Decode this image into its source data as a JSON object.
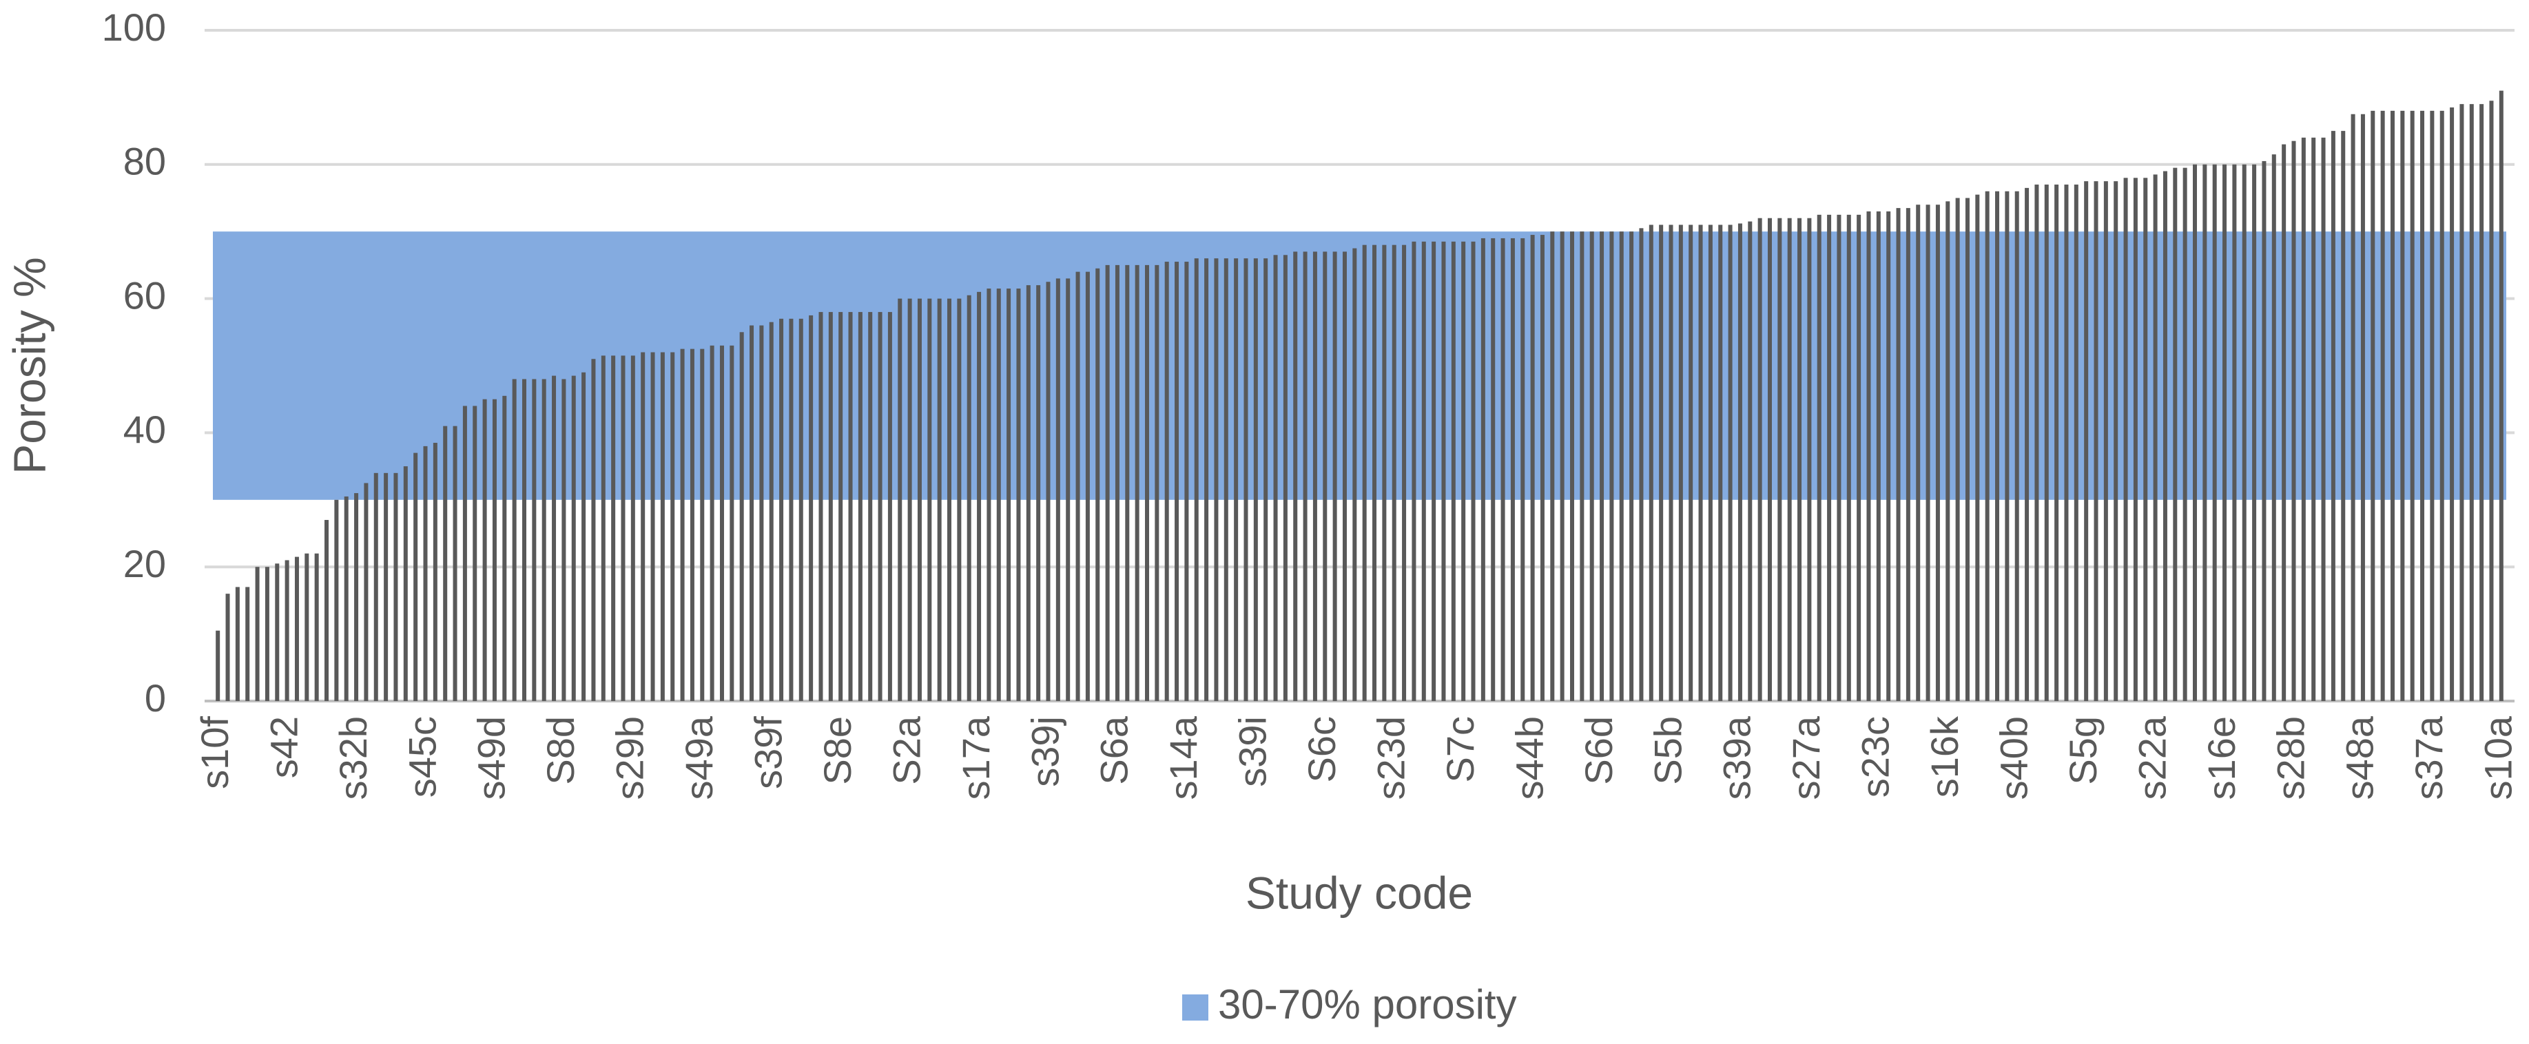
{
  "chart_data": {
    "type": "bar",
    "x_label": "Study code",
    "y_label": "Porosity %",
    "categories": [
      "s10f",
      null,
      null,
      null,
      null,
      null,
      null,
      "s42",
      null,
      null,
      null,
      null,
      null,
      null,
      "s32b",
      null,
      null,
      null,
      null,
      null,
      null,
      "s45c",
      null,
      null,
      null,
      null,
      null,
      null,
      "s49d",
      null,
      null,
      null,
      null,
      null,
      null,
      "S8d",
      null,
      null,
      null,
      null,
      null,
      null,
      "s29b",
      null,
      null,
      null,
      null,
      null,
      null,
      "s49a",
      null,
      null,
      null,
      null,
      null,
      null,
      "s39f",
      null,
      null,
      null,
      null,
      null,
      null,
      "S8e",
      null,
      null,
      null,
      null,
      null,
      null,
      "S2a",
      null,
      null,
      null,
      null,
      null,
      null,
      "s17a",
      null,
      null,
      null,
      null,
      null,
      null,
      "s39j",
      null,
      null,
      null,
      null,
      null,
      null,
      "S6a",
      null,
      null,
      null,
      null,
      null,
      null,
      "s14a",
      null,
      null,
      null,
      null,
      null,
      null,
      "s39i",
      null,
      null,
      null,
      null,
      null,
      null,
      "S6c",
      null,
      null,
      null,
      null,
      null,
      null,
      "s23d",
      null,
      null,
      null,
      null,
      null,
      null,
      "S7c",
      null,
      null,
      null,
      null,
      null,
      null,
      "s44b",
      null,
      null,
      null,
      null,
      null,
      null,
      "S6d",
      null,
      null,
      null,
      null,
      null,
      null,
      "S5b",
      null,
      null,
      null,
      null,
      null,
      null,
      "s39a",
      null,
      null,
      null,
      null,
      null,
      null,
      "s27a",
      null,
      null,
      null,
      null,
      null,
      null,
      "s23c",
      null,
      null,
      null,
      null,
      null,
      null,
      "s16k",
      null,
      null,
      null,
      null,
      null,
      null,
      "s40b",
      null,
      null,
      null,
      null,
      null,
      null,
      "S5g",
      null,
      null,
      null,
      null,
      null,
      null,
      "s22a",
      null,
      null,
      null,
      null,
      null,
      null,
      "s16e",
      null,
      null,
      null,
      null,
      null,
      null,
      "s28b",
      null,
      null,
      null,
      null,
      null,
      null,
      "s48a",
      null,
      null,
      null,
      null,
      null,
      null,
      "s37a",
      null,
      null,
      null,
      null,
      null,
      null,
      "s10a"
    ],
    "values": [
      10.5,
      16,
      17,
      17,
      20,
      20,
      20.5,
      21,
      21.5,
      22,
      22,
      27,
      30,
      30.5,
      31,
      32.5,
      34,
      34,
      34,
      35,
      37,
      38,
      38.5,
      41,
      41,
      44,
      44,
      45,
      45,
      45.5,
      48,
      48,
      48,
      48,
      48.5,
      48,
      48.5,
      49,
      51,
      51.5,
      51.5,
      51.5,
      51.5,
      52,
      52,
      52,
      52,
      52.5,
      52.5,
      52.5,
      53,
      53,
      53,
      55,
      56,
      56,
      56.5,
      57,
      57,
      57,
      57.5,
      58,
      58,
      58,
      58,
      58,
      58,
      58,
      58,
      60,
      60,
      60,
      60,
      60,
      60,
      60,
      60.5,
      61,
      61.5,
      61.5,
      61.5,
      61.5,
      62,
      62,
      62.5,
      63,
      63,
      64,
      64,
      64.5,
      65,
      65,
      65,
      65,
      65,
      65,
      65.5,
      65.5,
      65.5,
      66,
      66,
      66,
      66,
      66,
      66,
      66,
      66,
      66.5,
      66.5,
      67,
      67,
      67,
      67,
      67,
      67,
      67.5,
      68,
      68,
      68,
      68,
      68,
      68.5,
      68.5,
      68.5,
      68.5,
      68.5,
      68.5,
      68.5,
      69,
      69,
      69,
      69,
      69,
      69.5,
      69.5,
      70,
      70,
      70,
      70,
      70,
      70,
      70,
      70,
      70,
      70.5,
      71,
      71,
      71,
      71,
      71,
      71,
      71,
      71,
      71,
      71.2,
      71.5,
      72,
      72,
      72,
      72,
      72,
      72,
      72.5,
      72.5,
      72.5,
      72.5,
      72.5,
      73,
      73,
      73,
      73.5,
      73.5,
      74,
      74,
      74,
      74.5,
      75,
      75,
      75.5,
      76,
      76,
      76,
      76,
      76.5,
      77,
      77,
      77,
      77,
      77,
      77.5,
      77.5,
      77.5,
      77.5,
      78,
      78,
      78,
      78.5,
      79,
      79.5,
      79.5,
      80,
      80,
      80,
      80,
      80,
      80,
      80,
      80.5,
      81.5,
      83,
      83.5,
      84,
      84,
      84,
      85,
      85,
      87.5,
      87.5,
      88,
      88,
      88,
      88,
      88,
      88,
      88,
      88,
      88.5,
      89,
      89,
      89,
      89.5,
      91
    ],
    "color": "#595959",
    "band": {
      "name": "30-70% porosity",
      "color": "#84abe0",
      "range": [
        30,
        70
      ]
    },
    "ylim": [
      0,
      100
    ],
    "yticks": [
      0,
      20,
      40,
      60,
      80,
      100
    ],
    "grid": true,
    "legend": "bottom"
  }
}
